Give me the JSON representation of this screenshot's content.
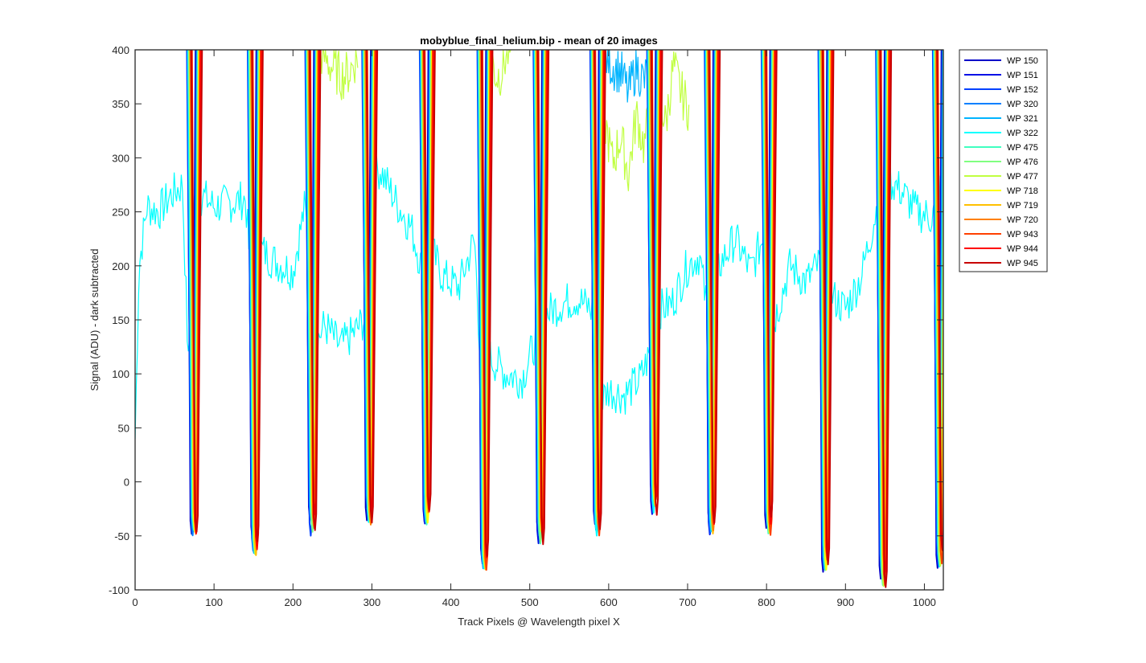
{
  "chart_data": {
    "type": "line",
    "title": "mobyblue_final_helium.bip - mean of 20 images",
    "xlabel": "Track Pixels @ Wavelength pixel X",
    "ylabel": "Signal (ADU) - dark subtracted",
    "xlim": [
      0,
      1024
    ],
    "ylim": [
      -100,
      400
    ],
    "xticks": [
      0,
      100,
      200,
      300,
      400,
      500,
      600,
      700,
      800,
      900,
      1000
    ],
    "yticks": [
      -100,
      -50,
      0,
      50,
      100,
      150,
      200,
      250,
      300,
      350,
      400
    ],
    "grid": false,
    "legend_position": "outside-top-right",
    "trough_centers": [
      75,
      152,
      225,
      297,
      370,
      443,
      514,
      586,
      658,
      731,
      803,
      875,
      948,
      1020
    ],
    "trough_minimum_values": [
      -40,
      -58,
      -40,
      -30,
      -30,
      -75,
      -50,
      -40,
      -22,
      -40,
      -40,
      -75,
      -88,
      -70
    ],
    "series": [
      {
        "name": "WP 150",
        "color": "#0000c8"
      },
      {
        "name": "WP 151",
        "color": "#0010e6"
      },
      {
        "name": "WP 152",
        "color": "#0040ff"
      },
      {
        "name": "WP 320",
        "color": "#0080ff"
      },
      {
        "name": "WP 321",
        "color": "#00b4ff"
      },
      {
        "name": "WP 322",
        "color": "#00ffff"
      },
      {
        "name": "WP 475",
        "color": "#40ffc0"
      },
      {
        "name": "WP 476",
        "color": "#80ff80"
      },
      {
        "name": "WP 477",
        "color": "#c0ff40"
      },
      {
        "name": "WP 718",
        "color": "#ffff00"
      },
      {
        "name": "WP 719",
        "color": "#ffc000"
      },
      {
        "name": "WP 720",
        "color": "#ff8000"
      },
      {
        "name": "WP 943",
        "color": "#ff4000"
      },
      {
        "name": "WP 944",
        "color": "#ff0000"
      },
      {
        "name": "WP 945",
        "color": "#c80000"
      }
    ],
    "background_band": {
      "series": "WP 322",
      "x": [
        0,
        5,
        15,
        30,
        45,
        60,
        68,
        72,
        85,
        100,
        120,
        140,
        150,
        160,
        175,
        200,
        215,
        222,
        230,
        240,
        260,
        280,
        295,
        300,
        310,
        330,
        350,
        368,
        375,
        390,
        410,
        430,
        440,
        445,
        450,
        470,
        490,
        512,
        520,
        540,
        560,
        585,
        590,
        600,
        620,
        640,
        658,
        665,
        680,
        700,
        715,
        730,
        740,
        760,
        780,
        800,
        810,
        830,
        850,
        870,
        885,
        900,
        920,
        940,
        945,
        955,
        970,
        990,
        1010,
        1024
      ],
      "y": [
        40,
        200,
        255,
        250,
        265,
        275,
        95,
        250,
        265,
        255,
        258,
        262,
        150,
        215,
        205,
        195,
        255,
        200,
        130,
        145,
        125,
        140,
        155,
        275,
        290,
        260,
        235,
        185,
        215,
        190,
        180,
        225,
        80,
        130,
        115,
        100,
        95,
        140,
        155,
        165,
        170,
        155,
        75,
        85,
        80,
        95,
        130,
        160,
        165,
        200,
        210,
        130,
        200,
        225,
        195,
        235,
        150,
        200,
        185,
        205,
        170,
        160,
        190,
        255,
        150,
        280,
        270,
        250,
        245,
        280
      ]
    },
    "saturated_band": [
      {
        "series": "WP 477",
        "x": [
          228,
          238,
          248,
          262,
          272,
          282
        ],
        "y": [
          400,
          395,
          385,
          375,
          380,
          395
        ]
      },
      {
        "series": "WP 477",
        "x": [
          452,
          458,
          464,
          470,
          476
        ],
        "y": [
          390,
          375,
          380,
          395,
          400
        ]
      },
      {
        "series": "WP 477",
        "x": [
          595,
          605,
          615,
          625,
          635,
          645,
          655
        ],
        "y": [
          335,
          295,
          320,
          285,
          340,
          310,
          360
        ]
      },
      {
        "series": "WP 477",
        "x": [
          662,
          672,
          682,
          692,
          702
        ],
        "y": [
          370,
          330,
          385,
          360,
          345
        ]
      },
      {
        "series": "WP 321",
        "x": [
          595,
          605,
          615,
          625,
          635,
          645,
          655
        ],
        "y": [
          395,
          385,
          380,
          360,
          385,
          370,
          395
        ]
      }
    ]
  }
}
